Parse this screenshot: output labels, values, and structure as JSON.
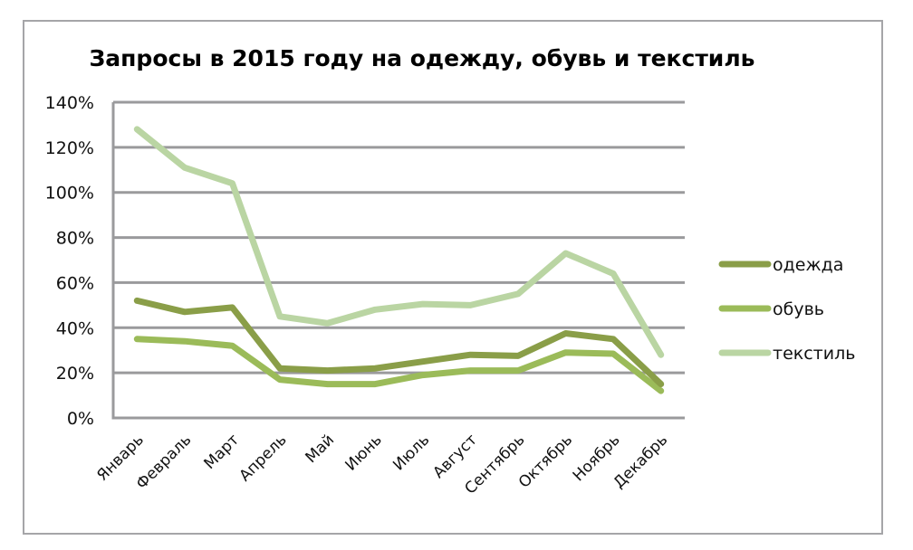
{
  "chart_data": {
    "type": "line",
    "title": "Запросы в 2015 году на одежду, обувь и текстиль",
    "xlabel": "",
    "ylabel": "",
    "categories": [
      "Январь",
      "Февраль",
      "Март",
      "Апрель",
      "Май",
      "Июнь",
      "Июль",
      "Август",
      "Сентябрь",
      "Октябрь",
      "Ноябрь",
      "Декабрь"
    ],
    "series": [
      {
        "name": "одежда",
        "color": "#8a9e48",
        "values": [
          52,
          47,
          49,
          22,
          21,
          22,
          25,
          28,
          27.5,
          37.5,
          35,
          15
        ]
      },
      {
        "name": "обувь",
        "color": "#9bbb59",
        "values": [
          35,
          34,
          32,
          17,
          15,
          15,
          19,
          21,
          21,
          29,
          28.5,
          12
        ]
      },
      {
        "name": "текстиль",
        "color": "#bad5a3",
        "values": [
          128,
          111,
          104,
          45,
          42,
          48,
          50.5,
          50,
          55,
          73,
          64,
          28
        ]
      }
    ],
    "ylim": [
      0,
      140
    ],
    "yticks": [
      0,
      20,
      40,
      60,
      80,
      100,
      120,
      140
    ],
    "ytick_labels": [
      "0%",
      "20%",
      "40%",
      "60%",
      "80%",
      "100%",
      "120%",
      "140%"
    ],
    "grid": true,
    "legend_position": "right",
    "colors": {
      "gridline": "#9a9a9c",
      "axis": "#9a9a9c",
      "frame": "#a5a5a8"
    }
  }
}
